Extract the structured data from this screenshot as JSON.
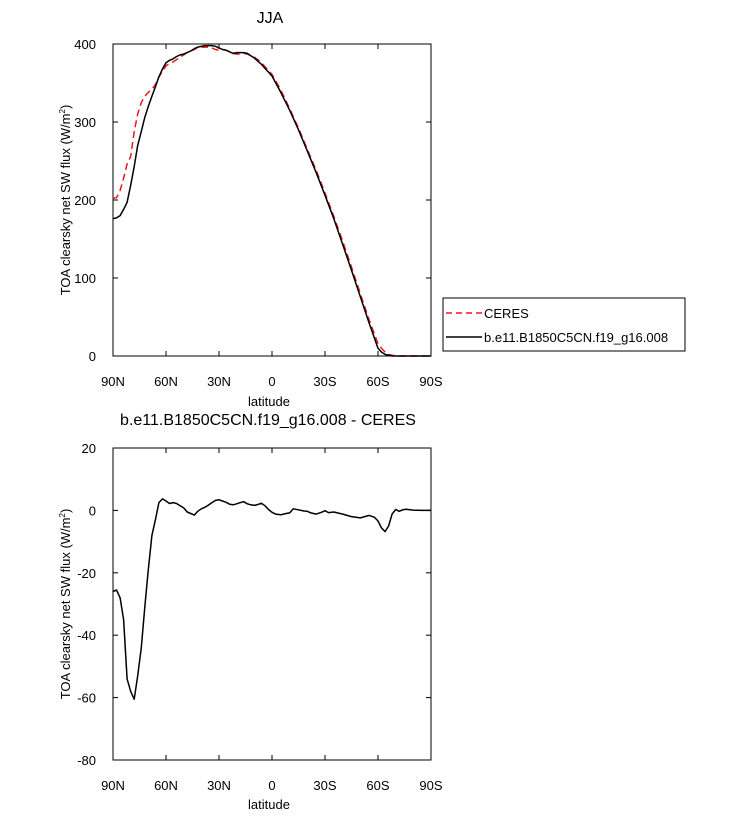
{
  "figure": {
    "chart_data": [
      {
        "type": "line",
        "title": "JJA",
        "xlabel": "latitude",
        "ylabel": "TOA clearsky net SW flux (W/m",
        "ylabel_sup": "2",
        "ylabel_tail": ")",
        "xlim": [
          90,
          -90
        ],
        "ylim": [
          0,
          400
        ],
        "x_ticks": [
          90,
          60,
          30,
          0,
          -30,
          -60,
          -90
        ],
        "x_tick_labels": [
          "90N",
          "60N",
          "30N",
          "0",
          "30S",
          "60S",
          "90S"
        ],
        "y_ticks": [
          0,
          100,
          200,
          300,
          400
        ],
        "y_tick_labels": [
          "0",
          "100",
          "200",
          "300",
          "400"
        ],
        "grid": false,
        "legend_position": "outside-right",
        "series": [
          {
            "name": "CERES",
            "color": "#e8191f",
            "style": "dashed",
            "x": [
              90,
              88,
              86,
              84,
              82,
              80,
              78,
              76,
              74,
              72,
              70,
              68,
              66,
              64,
              62,
              60,
              58,
              56,
              54,
              52,
              50,
              48,
              46,
              44,
              42,
              40,
              38,
              36,
              34,
              32,
              30,
              28,
              26,
              24,
              22,
              20,
              18,
              16,
              14,
              12,
              10,
              8,
              6,
              4,
              2,
              0,
              -5,
              -10,
              -15,
              -20,
              -25,
              -30,
              -35,
              -40,
              -45,
              -50,
              -55,
              -60,
              -62,
              -64,
              -66,
              -68,
              -70,
              -72,
              -74,
              -76,
              -78,
              -80,
              -82,
              -84,
              -86,
              -88,
              -90
            ],
            "values": [
              202,
              203,
              212,
              228,
              246,
              256,
              288,
              310,
              325,
              333,
              338,
              342,
              348,
              358,
              365,
              372,
              375,
              377,
              380,
              383,
              386,
              389,
              391,
              393,
              395,
              396,
              396,
              396,
              395,
              393,
              392,
              393,
              392,
              390,
              388,
              387,
              387,
              388,
              387,
              385,
              383,
              380,
              376,
              371,
              366,
              361,
              341,
              317,
              292,
              265,
              238,
              209,
              179,
              147,
              114,
              80,
              46,
              16,
              10,
              5,
              2,
              1,
              0,
              0,
              0,
              0,
              0,
              0,
              0,
              0,
              0,
              0,
              0
            ]
          },
          {
            "name": "b.e11.B1850C5CN.f19_g16.008",
            "color": "#000000",
            "style": "solid",
            "x": [
              90,
              88,
              86,
              84,
              82,
              80,
              78,
              76,
              74,
              72,
              70,
              68,
              66,
              64,
              62,
              60,
              58,
              56,
              54,
              52,
              50,
              48,
              46,
              44,
              42,
              40,
              38,
              36,
              34,
              32,
              30,
              28,
              26,
              24,
              22,
              20,
              18,
              16,
              14,
              12,
              10,
              8,
              6,
              4,
              2,
              0,
              -5,
              -10,
              -15,
              -20,
              -25,
              -30,
              -35,
              -40,
              -45,
              -50,
              -55,
              -60,
              -62,
              -64,
              -66,
              -68,
              -70,
              -72,
              -74,
              -76,
              -78,
              -80,
              -82,
              -84,
              -86,
              -88,
              -90
            ],
            "values": [
              176,
              177,
              180,
              188,
              197,
              219,
              243,
              270,
              288,
              306,
              320,
              333,
              345,
              358,
              368,
              376,
              379,
              381,
              384,
              386,
              387,
              389,
              391,
              394,
              396,
              397,
              398,
              398,
              398,
              397,
              395,
              393,
              392,
              390,
              388,
              389,
              389,
              389,
              388,
              385,
              382,
              378,
              374,
              369,
              364,
              359,
              338,
              315,
              290,
              263,
              235,
              206,
              176,
              143,
              110,
              76,
              42,
              10,
              5,
              2,
              1,
              0,
              0,
              0,
              0,
              0,
              0,
              0,
              0,
              0,
              0,
              0,
              0
            ]
          }
        ]
      },
      {
        "type": "line",
        "title": "b.e11.B1850C5CN.f19_g16.008 - CERES",
        "xlabel": "latitude",
        "ylabel": "TOA clearsky net SW flux (W/m",
        "ylabel_sup": "2",
        "ylabel_tail": ")",
        "xlim": [
          90,
          -90
        ],
        "ylim": [
          -80,
          20
        ],
        "x_ticks": [
          90,
          60,
          30,
          0,
          -30,
          -60,
          -90
        ],
        "x_tick_labels": [
          "90N",
          "60N",
          "30N",
          "0",
          "30S",
          "60S",
          "90S"
        ],
        "y_ticks": [
          -80,
          -60,
          -40,
          -20,
          0,
          20
        ],
        "y_tick_labels": [
          "-80",
          "-60",
          "-40",
          "-20",
          "0",
          "20"
        ],
        "grid": false,
        "series": [
          {
            "color": "#000000",
            "style": "solid",
            "x": [
              90,
              88,
              86,
              84,
              82,
              80,
              78,
              76,
              74,
              72,
              70,
              68,
              66,
              64,
              62,
              60,
              58,
              56,
              54,
              52,
              50,
              48,
              46,
              44,
              42,
              40,
              38,
              36,
              34,
              32,
              30,
              28,
              26,
              24,
              22,
              20,
              18,
              16,
              14,
              12,
              10,
              8,
              6,
              4,
              2,
              0,
              -2,
              -5,
              -8,
              -10,
              -12,
              -15,
              -18,
              -20,
              -22,
              -25,
              -28,
              -30,
              -32,
              -35,
              -40,
              -45,
              -50,
              -55,
              -58,
              -60,
              -62,
              -64,
              -66,
              -68,
              -70,
              -72,
              -74,
              -76,
              -78,
              -80,
              -85,
              -90
            ],
            "values": [
              -26,
              -25.5,
              -28,
              -35,
              -54,
              -58,
              -60.5,
              -53,
              -44,
              -31,
              -19,
              -8,
              -3,
              2.5,
              3.7,
              3,
              2.2,
              2.5,
              2.2,
              1.5,
              0.8,
              -0.5,
              -1,
              -1.5,
              -0.3,
              0.5,
              1,
              1.7,
              2.5,
              3.2,
              3.4,
              3,
              2.6,
              2,
              1.8,
              2.1,
              2.5,
              2.8,
              2.1,
              1.8,
              1.6,
              1.9,
              2.3,
              1.5,
              0.3,
              -0.6,
              -1.2,
              -1.4,
              -1,
              -0.8,
              0.5,
              0.2,
              -0.2,
              -0.3,
              -0.8,
              -1.2,
              -0.6,
              -0.1,
              -0.7,
              -0.5,
              -1.2,
              -2,
              -2.4,
              -1.6,
              -2.2,
              -3.4,
              -5.6,
              -6.8,
              -5,
              -1.2,
              0.3,
              -0.3,
              0.2,
              0.4,
              0.2,
              0.1,
              0,
              0
            ]
          }
        ]
      }
    ]
  }
}
